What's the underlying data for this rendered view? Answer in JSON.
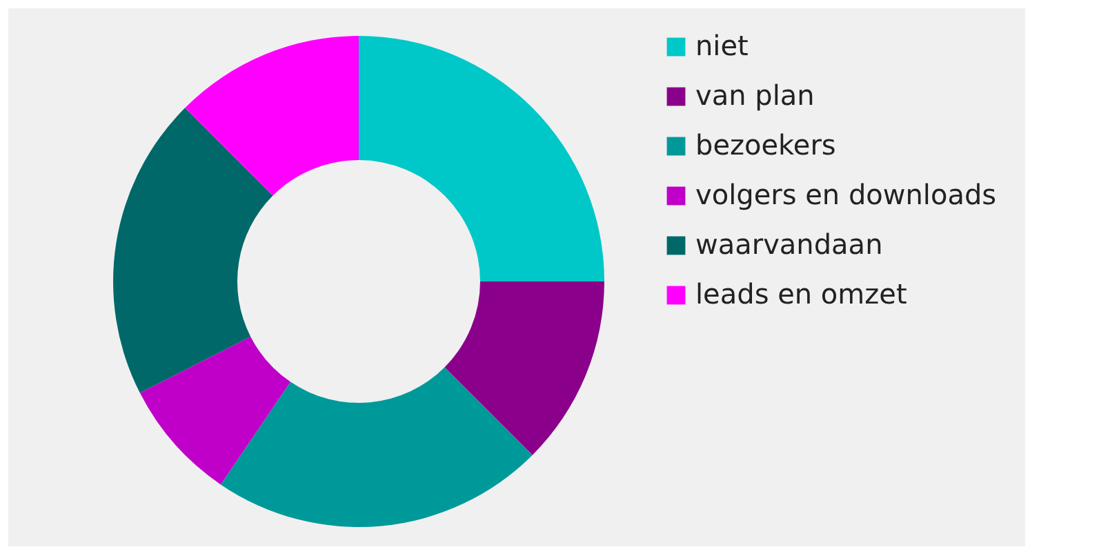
{
  "chart_data": {
    "type": "donut",
    "categories": [
      "niet",
      "van plan",
      "bezoekers",
      "volgers en downloads",
      "waarvandaan",
      "leads en omzet"
    ],
    "values": [
      25,
      12.5,
      22,
      8,
      20,
      12.5
    ],
    "colors": [
      "#00c8c8",
      "#8b008b",
      "#009999",
      "#c000c8",
      "#006868",
      "#ff00ff"
    ],
    "legend": "right"
  }
}
